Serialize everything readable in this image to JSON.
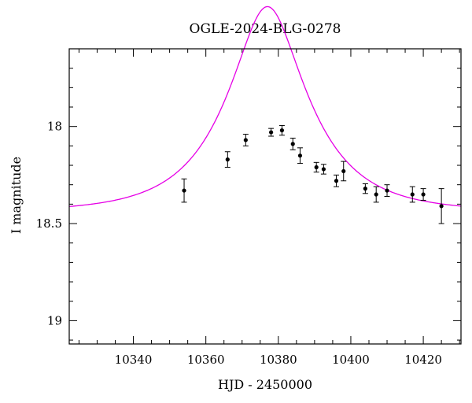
{
  "chart_data": {
    "type": "scatter",
    "title": "OGLE-2024-BLG-0278",
    "xlabel": "HJD - 2450000",
    "ylabel": "I magnitude",
    "xlim": [
      10322.3,
      10430.4
    ],
    "ylim": [
      19.12,
      17.6
    ],
    "y_inverted": true,
    "grid": false,
    "x_major_ticks": [
      10340,
      10360,
      10380,
      10400,
      10420
    ],
    "x_major_tick_labels": [
      "10340",
      "10360",
      "10380",
      "10400",
      "10420"
    ],
    "x_minor_step": 5,
    "y_major_ticks": [
      18,
      18.5,
      19
    ],
    "y_major_tick_labels": [
      "18",
      "18.5",
      "19"
    ],
    "y_minor_step": 0.1,
    "series": [
      {
        "type": "scatter",
        "x": [
          10354,
          10366,
          10371,
          10378,
          10381,
          10384,
          10386,
          10390.5,
          10392.5,
          10396,
          10398,
          10404,
          10407,
          10410,
          10417,
          10420,
          10425
        ],
        "y": [
          18.33,
          18.17,
          18.07,
          18.03,
          18.02,
          18.09,
          18.15,
          18.21,
          18.22,
          18.28,
          18.23,
          18.32,
          18.35,
          18.33,
          18.35,
          18.35,
          18.41
        ],
        "yerr": [
          0.06,
          0.04,
          0.03,
          0.02,
          0.025,
          0.03,
          0.04,
          0.025,
          0.025,
          0.03,
          0.05,
          0.025,
          0.04,
          0.03,
          0.04,
          0.03,
          0.09
        ],
        "color": "#000000"
      },
      {
        "type": "line",
        "model": "paczynski",
        "params": {
          "t0": 10377,
          "u0": 0.4,
          "tE": 21,
          "baseline_mag": 18.44
        },
        "color": "#e600e6"
      }
    ]
  }
}
